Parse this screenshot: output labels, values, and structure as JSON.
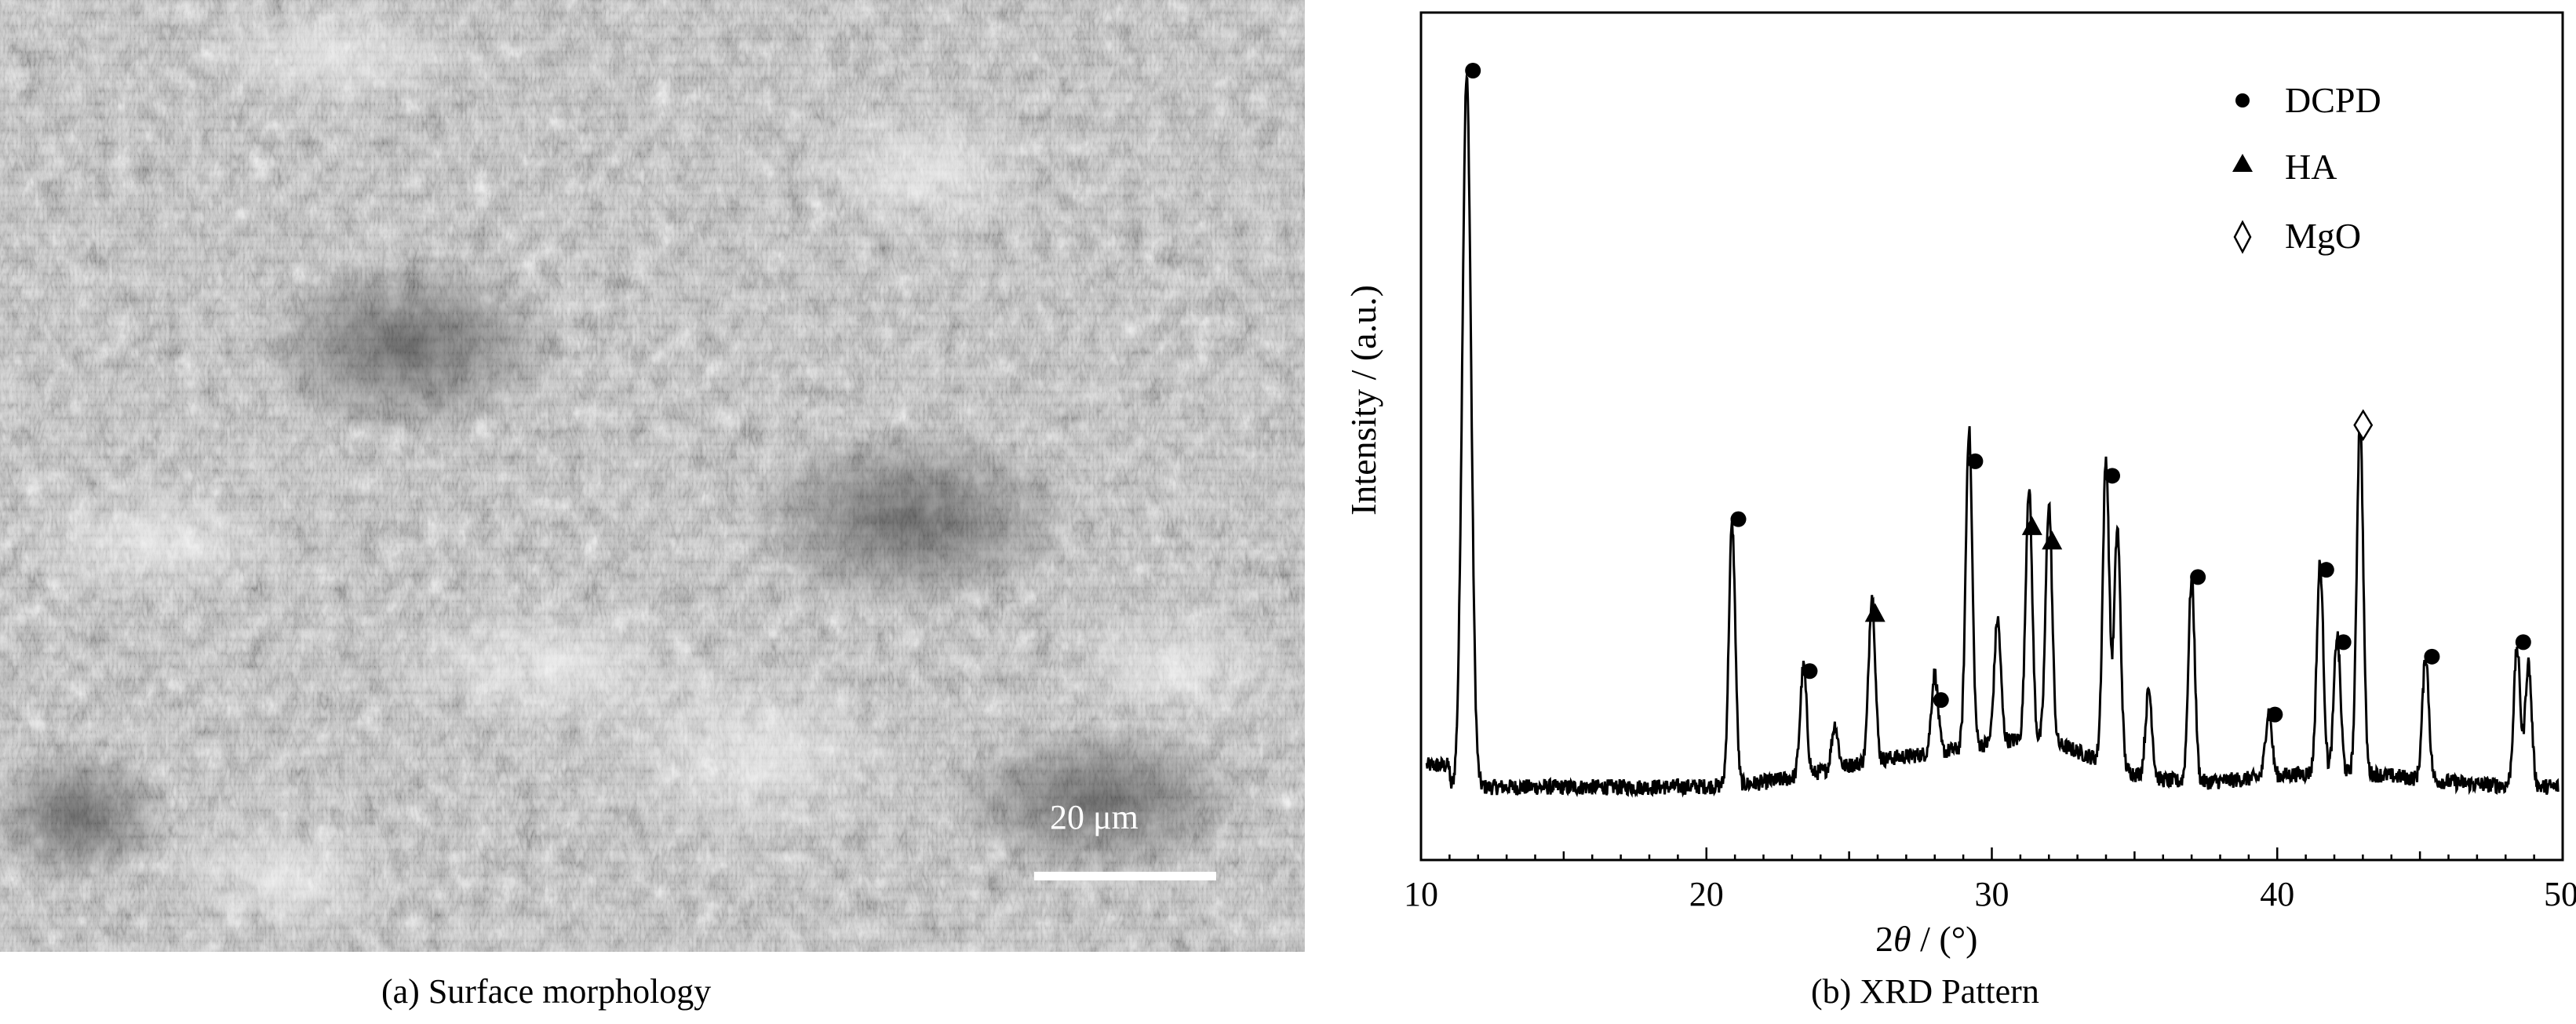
{
  "figure": {
    "captions": {
      "a": "(a) Surface morphology",
      "b": "(b) XRD Pattern"
    },
    "sem": {
      "scale_label": "20 μm",
      "image_description_icon": "sem-micrograph-texture"
    }
  },
  "chart_data": {
    "type": "line",
    "xlabel_prefix": "2",
    "xlabel_symbol": "θ",
    "xlabel_suffix": " / (°)",
    "ylabel": "Intensity / (a.u.)",
    "xlim": [
      10,
      50
    ],
    "xticks": [
      10,
      20,
      30,
      40,
      50
    ],
    "yticks_shown": false,
    "grid": false,
    "legend_position": "top-right",
    "legend": [
      {
        "marker": "circle",
        "label": "DCPD"
      },
      {
        "marker": "triangle",
        "label": "HA"
      },
      {
        "marker": "diamond-open",
        "label": "MgO"
      }
    ],
    "baseline": 0.04,
    "peaks": [
      {
        "x": 11.6,
        "y": 1.0,
        "marker": "circle"
      },
      {
        "x": 20.9,
        "y": 0.38,
        "marker": "circle"
      },
      {
        "x": 23.4,
        "y": 0.17,
        "marker": "circle"
      },
      {
        "x": 24.5,
        "y": 0.08,
        "marker": null
      },
      {
        "x": 25.8,
        "y": 0.25,
        "marker": "triangle"
      },
      {
        "x": 28.0,
        "y": 0.13,
        "marker": "circle"
      },
      {
        "x": 29.2,
        "y": 0.46,
        "marker": "circle"
      },
      {
        "x": 30.2,
        "y": 0.19,
        "marker": null
      },
      {
        "x": 31.3,
        "y": 0.37,
        "marker": "triangle"
      },
      {
        "x": 32.0,
        "y": 0.35,
        "marker": "triangle"
      },
      {
        "x": 34.0,
        "y": 0.44,
        "marker": "circle"
      },
      {
        "x": 34.4,
        "y": 0.35,
        "marker": null
      },
      {
        "x": 35.5,
        "y": 0.14,
        "marker": null
      },
      {
        "x": 37.0,
        "y": 0.3,
        "marker": "circle"
      },
      {
        "x": 39.7,
        "y": 0.11,
        "marker": "circle"
      },
      {
        "x": 41.5,
        "y": 0.31,
        "marker": "circle"
      },
      {
        "x": 42.1,
        "y": 0.21,
        "marker": "circle"
      },
      {
        "x": 42.9,
        "y": 0.51,
        "marker": "diamond-open"
      },
      {
        "x": 45.2,
        "y": 0.19,
        "marker": "circle"
      },
      {
        "x": 48.4,
        "y": 0.21,
        "marker": "circle"
      },
      {
        "x": 48.8,
        "y": 0.19,
        "marker": null
      }
    ]
  }
}
